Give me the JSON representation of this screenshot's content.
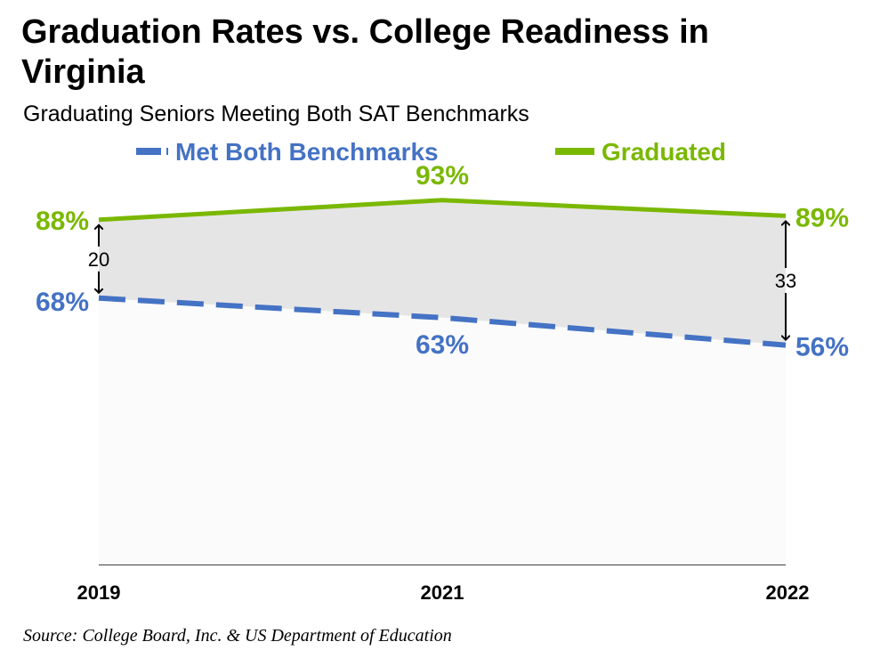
{
  "title": "Graduation Rates vs. College Readiness in Virginia",
  "subtitle": "Graduating Seniors Meeting Both SAT Benchmarks",
  "source": "Source: College Board, Inc. & US Department of Education",
  "colors": {
    "met": "#4472C4",
    "graduated": "#7AB800",
    "gap_fill": "#E6E5E5",
    "axis": "#000000"
  },
  "chart_data": {
    "type": "line",
    "categories": [
      "2019",
      "2021",
      "2022"
    ],
    "series": [
      {
        "name": "Met Both Benchmarks",
        "values": [
          68,
          63,
          56
        ],
        "labels": [
          "68%",
          "63%",
          "56%"
        ],
        "style": "dashed"
      },
      {
        "name": "Graduated",
        "values": [
          88,
          93,
          89
        ],
        "labels": [
          "88%",
          "93%",
          "89%"
        ],
        "style": "solid"
      }
    ],
    "gap_annotations": [
      {
        "category": "2019",
        "value": 20,
        "label": "20"
      },
      {
        "category": "2022",
        "value": 33,
        "label": "33"
      }
    ],
    "legend": "top",
    "grid": false,
    "shaded_gap": true
  }
}
